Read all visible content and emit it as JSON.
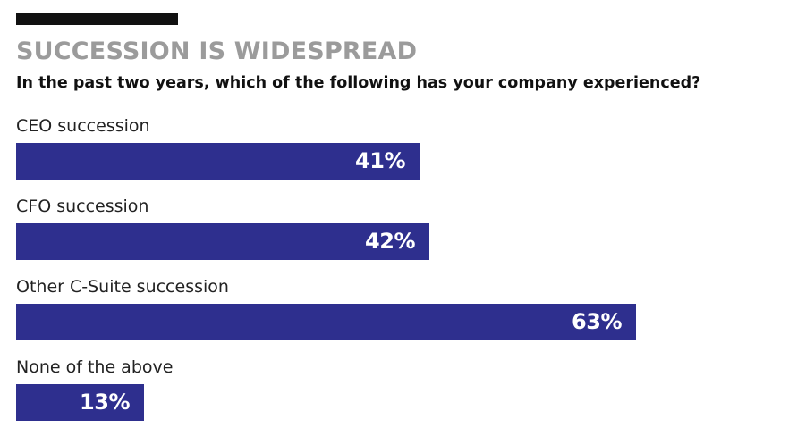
{
  "header": {
    "title": "SUCCESSION IS WIDESPREAD",
    "subtitle": "In the past two years, which of the following has your company experienced?"
  },
  "colors": {
    "bar": "#2e2f8e",
    "title": "#9b9b9b",
    "rule": "#111111"
  },
  "chart_data": {
    "type": "bar",
    "orientation": "horizontal",
    "title": "SUCCESSION IS WIDESPREAD",
    "subtitle": "In the past two years, which of the following has your company experienced?",
    "categories": [
      "CEO succession",
      "CFO succession",
      "Other C-Suite succession",
      "None of the above"
    ],
    "values": [
      41,
      42,
      63,
      13
    ],
    "value_labels": [
      "41%",
      "42%",
      "63%",
      "13%"
    ],
    "unit": "%",
    "xlim": [
      0,
      100
    ],
    "grid": false,
    "legend": "none"
  }
}
